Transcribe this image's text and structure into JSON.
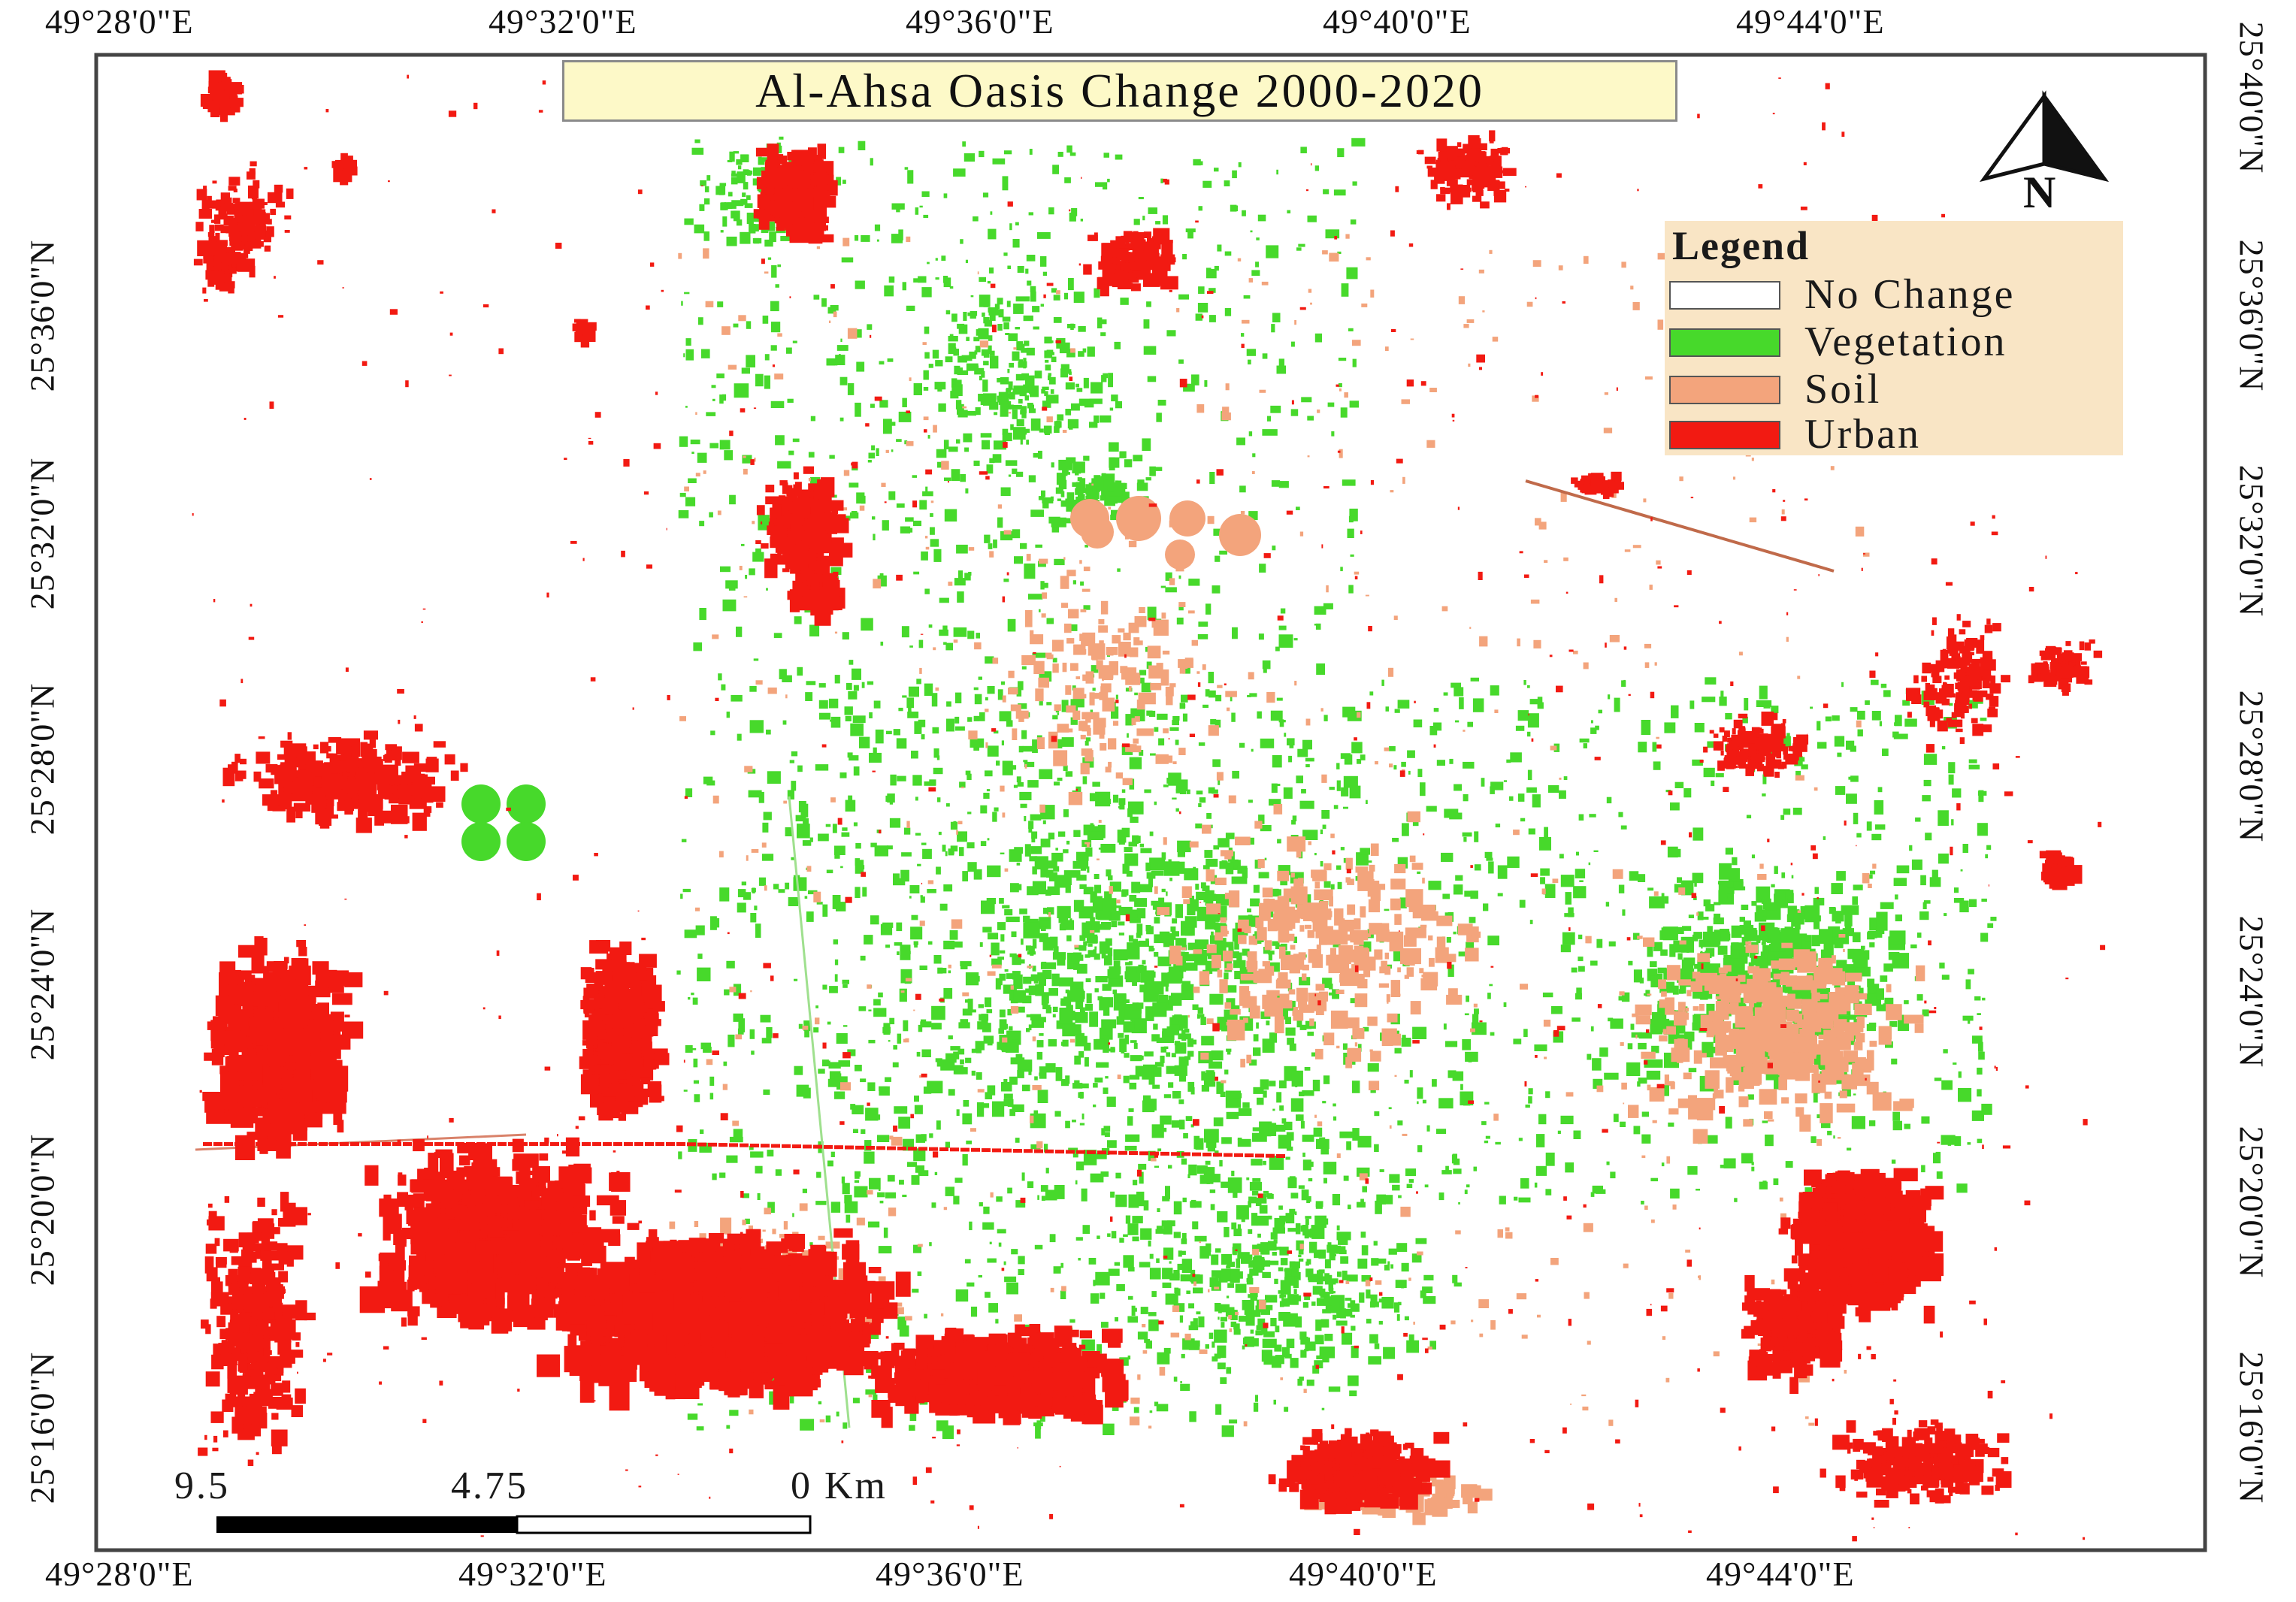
{
  "map": {
    "title": "Al-Ahsa Oasis Change 2000-2020",
    "north_label": "N",
    "coordinates": {
      "top": [
        "49°28'0\"E",
        "49°32'0\"E",
        "49°36'0\"E",
        "49°40'0\"E",
        "49°44'0\"E"
      ],
      "bottom": [
        "49°28'0\"E",
        "49°32'0\"E",
        "49°36'0\"E",
        "49°40'0\"E",
        "49°44'0\"E"
      ],
      "left": [
        "25°36'0\"N",
        "25°32'0\"N",
        "25°28'0\"N",
        "25°24'0\"N",
        "25°20'0\"N",
        "25°16'0\"N"
      ],
      "right": [
        "25°40'0\"N",
        "25°36'0\"N",
        "25°32'0\"N",
        "25°28'0\"N",
        "25°24'0\"N",
        "25°20'0\"N",
        "25°16'0\"N"
      ]
    },
    "legend": {
      "title": "Legend",
      "items": [
        {
          "label": "No Change",
          "color": "#ffffff"
        },
        {
          "label": "Vegetation",
          "color": "#47d92b"
        },
        {
          "label": "Soil",
          "color": "#f3a47c"
        },
        {
          "label": "Urban",
          "color": "#f21a12"
        }
      ]
    },
    "scale_bar": {
      "labels": [
        "9.5",
        "4.75",
        "0 Km"
      ]
    }
  }
}
